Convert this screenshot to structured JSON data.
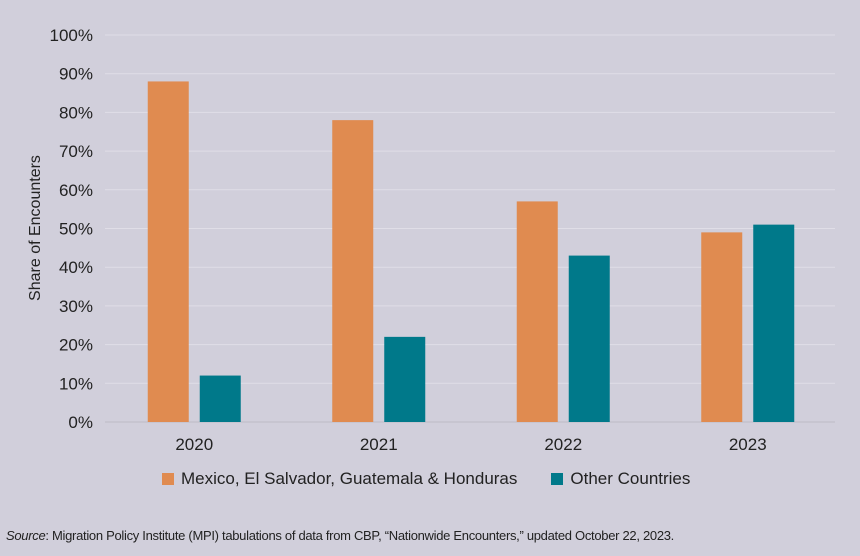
{
  "chart_data": {
    "type": "bar",
    "categories": [
      "2020",
      "2021",
      "2022",
      "2023"
    ],
    "series": [
      {
        "name": "Mexico, El Salvador, Guatemala & Honduras",
        "values": [
          88,
          78,
          57,
          49
        ],
        "color": "#e08b50"
      },
      {
        "name": "Other Countries",
        "values": [
          12,
          22,
          43,
          51
        ],
        "color": "#00798a"
      }
    ],
    "ylabel": "Share of Encounters",
    "ylim": [
      0,
      100
    ],
    "yticks": [
      "0%",
      "10%",
      "20%",
      "30%",
      "40%",
      "50%",
      "60%",
      "70%",
      "80%",
      "90%",
      "100%"
    ],
    "grid": true,
    "legend": "bottom"
  },
  "source": {
    "label": "Source",
    "text": ": Migration Policy Institute (MPI) tabulations of data from CBP, “Nationwide Encounters,” updated October 22, 2023."
  }
}
